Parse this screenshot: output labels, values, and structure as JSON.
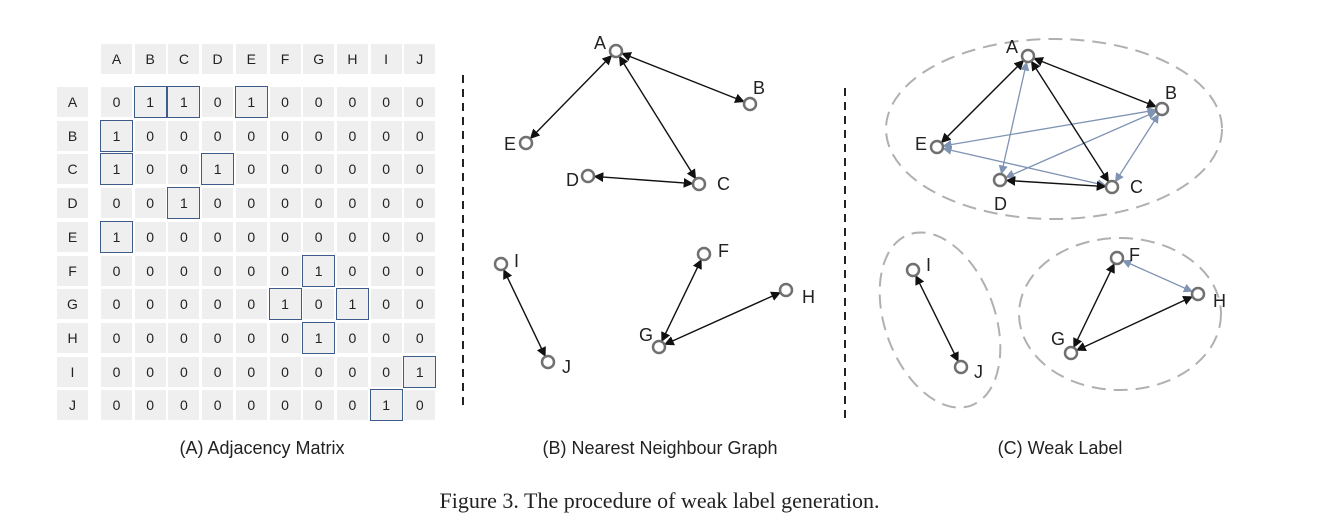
{
  "matrix": {
    "labels": [
      "A",
      "B",
      "C",
      "D",
      "E",
      "F",
      "G",
      "H",
      "I",
      "J"
    ],
    "rows": [
      [
        0,
        1,
        1,
        0,
        1,
        0,
        0,
        0,
        0,
        0
      ],
      [
        1,
        0,
        0,
        0,
        0,
        0,
        0,
        0,
        0,
        0
      ],
      [
        1,
        0,
        0,
        1,
        0,
        0,
        0,
        0,
        0,
        0
      ],
      [
        0,
        0,
        1,
        0,
        0,
        0,
        0,
        0,
        0,
        0
      ],
      [
        1,
        0,
        0,
        0,
        0,
        0,
        0,
        0,
        0,
        0
      ],
      [
        0,
        0,
        0,
        0,
        0,
        0,
        1,
        0,
        0,
        0
      ],
      [
        0,
        0,
        0,
        0,
        0,
        1,
        0,
        1,
        0,
        0
      ],
      [
        0,
        0,
        0,
        0,
        0,
        0,
        1,
        0,
        0,
        0
      ],
      [
        0,
        0,
        0,
        0,
        0,
        0,
        0,
        0,
        0,
        1
      ],
      [
        0,
        0,
        0,
        0,
        0,
        0,
        0,
        0,
        1,
        0
      ]
    ]
  },
  "graph_b": {
    "edges": [
      [
        "A",
        "B"
      ],
      [
        "A",
        "E"
      ],
      [
        "A",
        "C"
      ],
      [
        "D",
        "C"
      ],
      [
        "I",
        "J"
      ],
      [
        "F",
        "G"
      ],
      [
        "G",
        "H"
      ]
    ]
  },
  "graph_c": {
    "dark_edges": [
      [
        "A",
        "B"
      ],
      [
        "A",
        "E"
      ],
      [
        "A",
        "C"
      ],
      [
        "D",
        "C"
      ],
      [
        "I",
        "J"
      ],
      [
        "F",
        "G"
      ],
      [
        "G",
        "H"
      ]
    ],
    "light_edges": [
      [
        "A",
        "D"
      ],
      [
        "A",
        "E"
      ],
      [
        "B",
        "E"
      ],
      [
        "B",
        "D"
      ],
      [
        "B",
        "C"
      ],
      [
        "E",
        "C"
      ],
      [
        "F",
        "H"
      ]
    ]
  },
  "captions": {
    "a": "(A) Adjacency Matrix",
    "b": "(B) Nearest Neighbour Graph",
    "c": "(C) Weak Label",
    "figure": "Figure 3. The procedure of weak label generation."
  },
  "colors": {
    "highlight": "#3e5c8a",
    "light_edge": "#7f93b3",
    "node": "#707070",
    "ellipse": "#b0b0b0"
  }
}
